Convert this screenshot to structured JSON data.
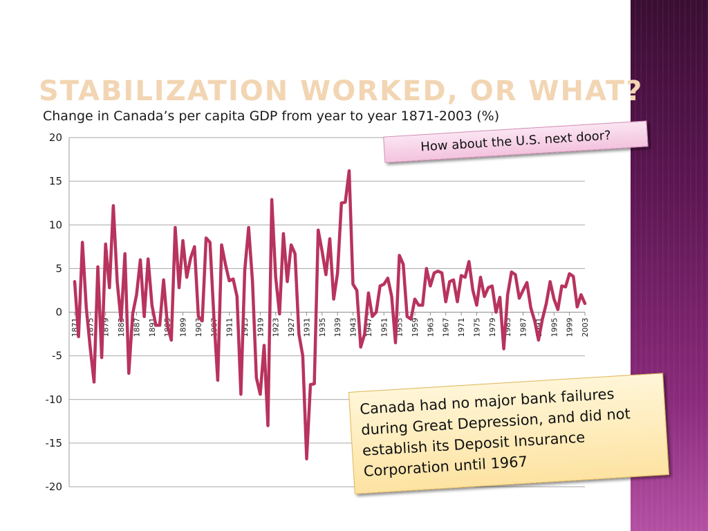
{
  "slide": {
    "title": "Stabilization Worked, or What?",
    "subtitle": "Change in Canada’s per capita GDP from year to year 1871-2003 (%)"
  },
  "callouts": {
    "us_question": "How about the U.S. next door?",
    "canada_note": "Canada had no major bank failures during Great Depression, and did not establish its Deposit Insurance Corporation until 1967"
  },
  "colors": {
    "line": "#b8335e",
    "title": "#f2d5b3",
    "side_band": "#7a2268"
  },
  "chart_data": {
    "type": "line",
    "title": "Change in Canada’s per capita GDP from year to year 1871-2003 (%)",
    "xlabel": "",
    "ylabel": "",
    "ylim": [
      -20,
      20
    ],
    "yticks": [
      "20",
      "15",
      "10",
      "5",
      "0",
      "-5",
      "-10",
      "-15",
      "-20"
    ],
    "x_tick_labels": [
      "1871",
      "1875",
      "1879",
      "1883",
      "1887",
      "1891",
      "1895",
      "1899",
      "1903",
      "1907",
      "1911",
      "1915",
      "1919",
      "1923",
      "1927",
      "1931",
      "1935",
      "1939",
      "1943",
      "1947",
      "1951",
      "1955",
      "1959",
      "1963",
      "1967",
      "1971",
      "1975",
      "1979",
      "1983",
      "1987",
      "1991",
      "1995",
      "1999",
      "2003"
    ],
    "grid": true,
    "legend": "none",
    "series": [
      {
        "x": [
          1871,
          1872,
          1873,
          1874,
          1875,
          1876,
          1877,
          1878,
          1879,
          1880,
          1881,
          1882,
          1883,
          1884,
          1885,
          1886,
          1887,
          1888,
          1889,
          1890,
          1891,
          1892,
          1893,
          1894,
          1895,
          1896,
          1897,
          1898,
          1899,
          1900,
          1901,
          1902,
          1903,
          1904,
          1905,
          1906,
          1907,
          1908,
          1909,
          1910,
          1911,
          1912,
          1913,
          1914,
          1915,
          1916,
          1917,
          1918,
          1919,
          1920,
          1921,
          1922,
          1923,
          1924,
          1925,
          1926,
          1927,
          1928,
          1929,
          1930,
          1931,
          1932,
          1933,
          1934,
          1935,
          1936,
          1937,
          1938,
          1939,
          1940,
          1941,
          1942,
          1943,
          1944,
          1945,
          1946,
          1947,
          1948,
          1949,
          1950,
          1951,
          1952,
          1953,
          1954,
          1955,
          1956,
          1957,
          1958,
          1959,
          1960,
          1961,
          1962,
          1963,
          1964,
          1965,
          1966,
          1967,
          1968,
          1969,
          1970,
          1971,
          1972,
          1973,
          1974,
          1975,
          1976,
          1977,
          1978,
          1979,
          1980,
          1981,
          1982,
          1983,
          1984,
          1985,
          1986,
          1987,
          1988,
          1989,
          1990,
          1991,
          1992,
          1993,
          1994,
          1995,
          1996,
          1997,
          1998,
          1999,
          2000,
          2001,
          2002,
          2003
        ],
        "y": [
          3.5,
          -2.8,
          8.0,
          0.5,
          -4.0,
          -8.0,
          5.2,
          -5.2,
          7.8,
          2.8,
          12.2,
          3.5,
          -1.0,
          6.7,
          -7.0,
          -0.2,
          2.0,
          6.0,
          -0.5,
          6.1,
          0.8,
          -1.5,
          -1.5,
          3.7,
          -1.5,
          -3.2,
          9.7,
          2.8,
          8.2,
          4.0,
          6.2,
          7.5,
          -0.5,
          -1.0,
          8.5,
          8.0,
          -0.5,
          -7.8,
          7.7,
          5.5,
          3.6,
          3.8,
          1.8,
          -9.4,
          4.8,
          9.7,
          3.5,
          -7.5,
          -9.4,
          -3.8,
          -13.0,
          12.9,
          4.0,
          -0.2,
          9.0,
          3.5,
          7.7,
          6.7,
          -2.5,
          -5.0,
          -16.8,
          -8.3,
          -8.2,
          9.4,
          7.0,
          4.3,
          8.4,
          1.5,
          4.5,
          12.5,
          12.6,
          16.2,
          3.2,
          2.5,
          -4.0,
          -2.5,
          2.2,
          -0.5,
          0.0,
          3.0,
          3.2,
          3.9,
          1.8,
          -3.5,
          6.5,
          5.5,
          -0.5,
          -0.8,
          1.5,
          0.8,
          0.8,
          5.0,
          3.0,
          4.5,
          4.7,
          4.5,
          1.2,
          3.5,
          3.7,
          1.2,
          4.2,
          4.0,
          5.8,
          2.5,
          0.8,
          4.0,
          1.8,
          2.8,
          3.0,
          0.0,
          1.7,
          -4.2,
          2.0,
          4.6,
          4.3,
          1.6,
          2.5,
          3.4,
          0.5,
          -1.0,
          -3.2,
          -0.8,
          1.0,
          3.5,
          1.5,
          0.3,
          3.0,
          2.9,
          4.4,
          4.1,
          0.6,
          2.0,
          1.0
        ]
      }
    ]
  }
}
